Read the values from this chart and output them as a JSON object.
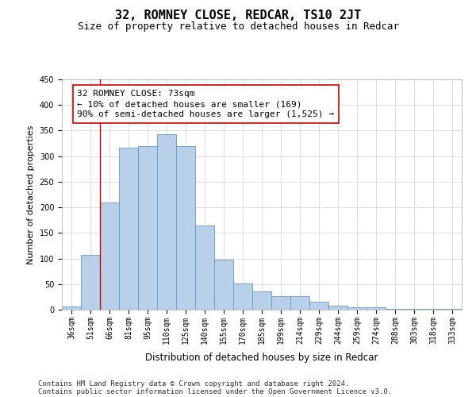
{
  "title": "32, ROMNEY CLOSE, REDCAR, TS10 2JT",
  "subtitle": "Size of property relative to detached houses in Redcar",
  "xlabel": "Distribution of detached houses by size in Redcar",
  "ylabel": "Number of detached properties",
  "categories": [
    "36sqm",
    "51sqm",
    "66sqm",
    "81sqm",
    "95sqm",
    "110sqm",
    "125sqm",
    "140sqm",
    "155sqm",
    "170sqm",
    "185sqm",
    "199sqm",
    "214sqm",
    "229sqm",
    "244sqm",
    "259sqm",
    "274sqm",
    "288sqm",
    "303sqm",
    "318sqm",
    "333sqm"
  ],
  "values": [
    6,
    107,
    210,
    317,
    320,
    343,
    319,
    165,
    98,
    51,
    35,
    27,
    27,
    16,
    8,
    5,
    5,
    1,
    1,
    1,
    1
  ],
  "bar_color": "#b8d0e8",
  "bar_edge_color": "#6699cc",
  "grid_color": "#d0d0d0",
  "vline_color": "#cc0000",
  "annotation_text_line1": "32 ROMNEY CLOSE: 73sqm",
  "annotation_text_line2": "← 10% of detached houses are smaller (169)",
  "annotation_text_line3": "90% of semi-detached houses are larger (1,525) →",
  "box_edge_color": "#cc0000",
  "ylim": [
    0,
    450
  ],
  "yticks": [
    0,
    50,
    100,
    150,
    200,
    250,
    300,
    350,
    400,
    450
  ],
  "footer_line1": "Contains HM Land Registry data © Crown copyright and database right 2024.",
  "footer_line2": "Contains public sector information licensed under the Open Government Licence v3.0.",
  "title_fontsize": 11,
  "subtitle_fontsize": 9,
  "xlabel_fontsize": 8.5,
  "ylabel_fontsize": 8,
  "tick_fontsize": 7,
  "annotation_fontsize": 8,
  "footer_fontsize": 6.5
}
